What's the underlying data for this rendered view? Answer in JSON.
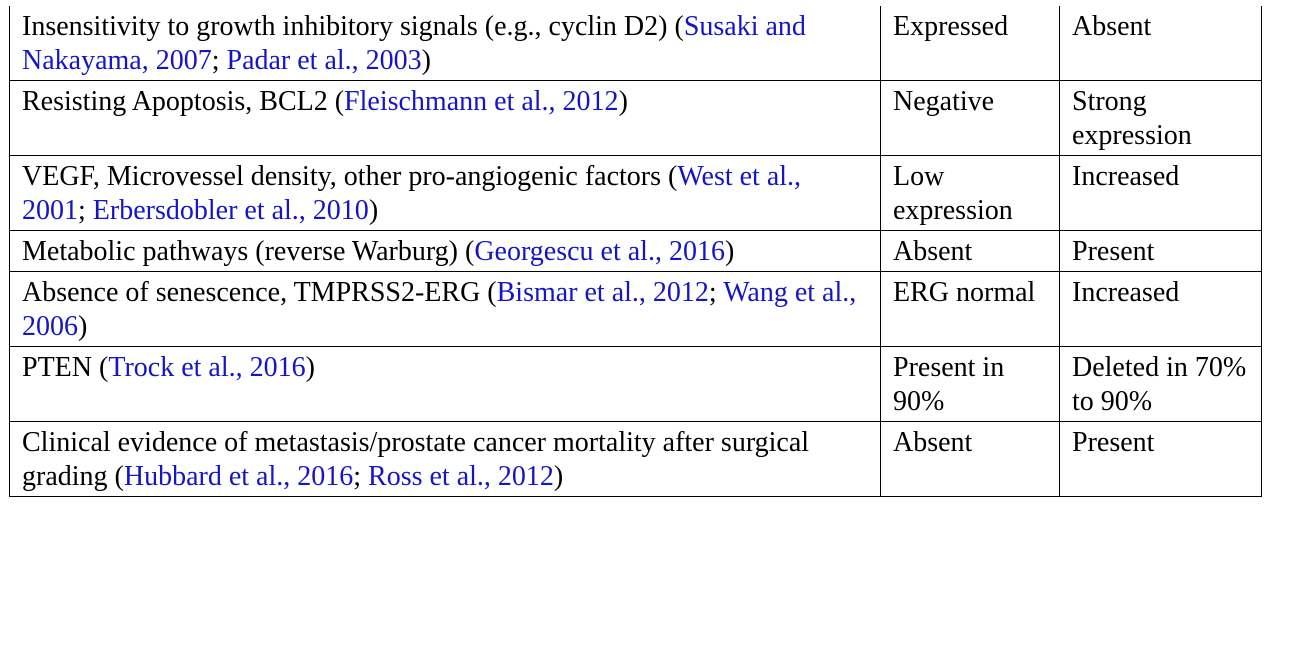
{
  "colors": {
    "text": "#000000",
    "link": "#1515c8",
    "border": "#000000"
  },
  "rows": [
    {
      "feature": [
        {
          "t": "Insensitivity to growth inhibitory signals (e.g., cyclin D2) "
        },
        {
          "t": "(",
          "ref": false
        },
        {
          "t": "Susaki and Nakayama, 2007",
          "ref": true
        },
        {
          "t": "; "
        },
        {
          "t": "Padar et al., 2003",
          "ref": true
        },
        {
          "t": ")"
        }
      ],
      "col2": "Expressed",
      "col3": "Absent"
    },
    {
      "feature": [
        {
          "t": "Resisting Apoptosis, BCL2 ("
        },
        {
          "t": "Fleischmann et al., 2012",
          "ref": true
        },
        {
          "t": ")"
        }
      ],
      "col2": "Negative",
      "col3": "Strong expression"
    },
    {
      "feature": [
        {
          "t": "VEGF, Microvessel density, other pro-angiogenic factors ("
        },
        {
          "t": "West et al., 2001",
          "ref": true
        },
        {
          "t": "; "
        },
        {
          "t": "Erbersdobler et al., 2010",
          "ref": true
        },
        {
          "t": ")"
        }
      ],
      "col2": "Low expression",
      "col3": "Increased"
    },
    {
      "feature": [
        {
          "t": "Metabolic pathways (reverse Warburg) ("
        },
        {
          "t": "Georgescu et al., 2016",
          "ref": true
        },
        {
          "t": ")"
        }
      ],
      "col2": "Absent",
      "col3": "Present"
    },
    {
      "feature": [
        {
          "t": "Absence of senescence, TMPRSS2-ERG ("
        },
        {
          "t": "Bismar et al., 2012",
          "ref": true
        },
        {
          "t": "; "
        },
        {
          "t": "Wang et al., 2006",
          "ref": true
        },
        {
          "t": ")"
        }
      ],
      "col2": "ERG normal",
      "col3": "Increased"
    },
    {
      "feature": [
        {
          "t": "PTEN ("
        },
        {
          "t": "Trock et al., 2016",
          "ref": true
        },
        {
          "t": ")"
        }
      ],
      "col2": "Present in 90%",
      "col3": "Deleted in 70% to 90%"
    },
    {
      "feature": [
        {
          "t": "Clinical evidence of metastasis/prostate cancer mortality after surgical grading ("
        },
        {
          "t": "Hubbard et al., 2016",
          "ref": true
        },
        {
          "t": "; "
        },
        {
          "t": "Ross et al., 2012",
          "ref": true
        },
        {
          "t": ")"
        }
      ],
      "col2": "Absent",
      "col3": "Present"
    }
  ]
}
